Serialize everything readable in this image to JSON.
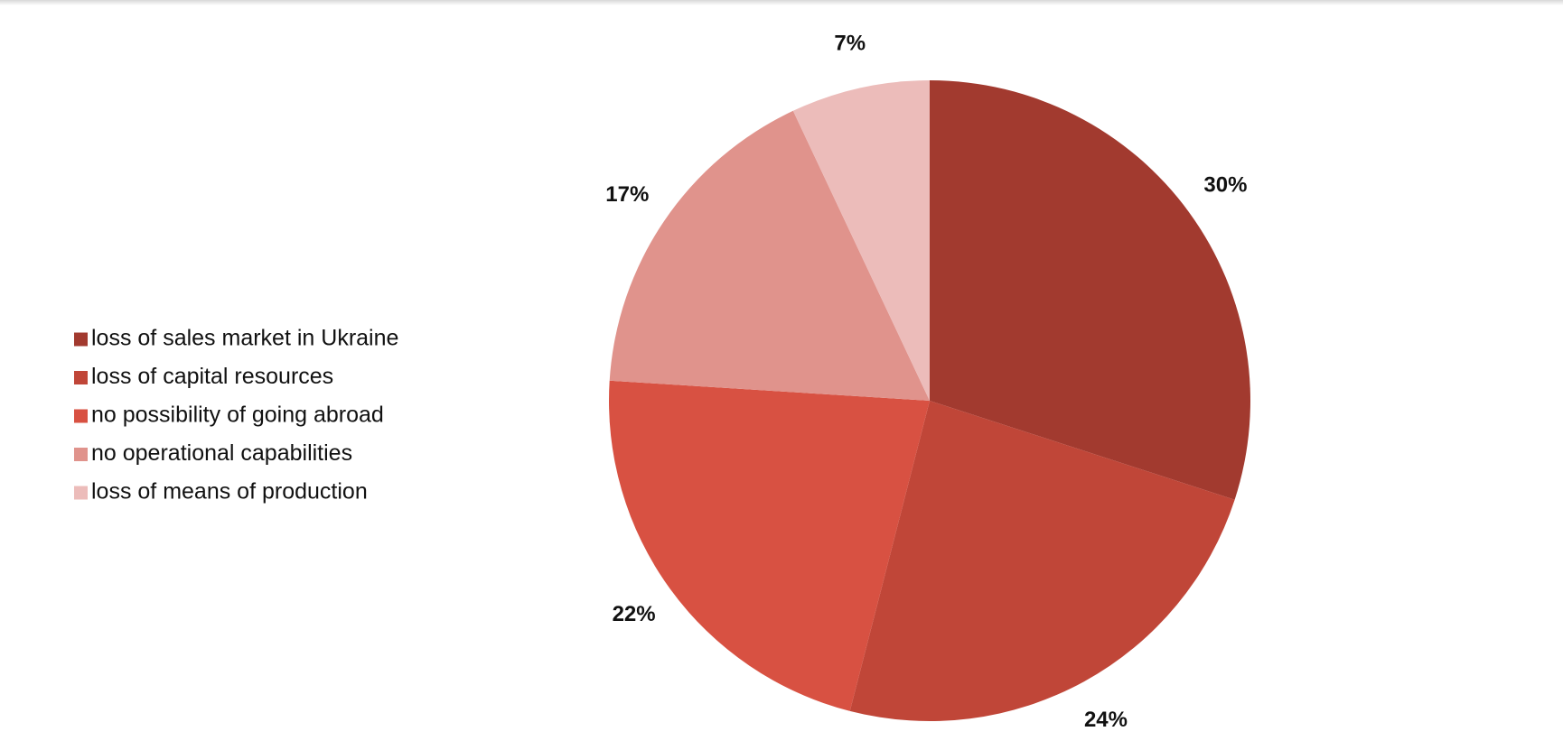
{
  "chart_data": {
    "type": "pie",
    "categories": [
      "loss of sales market in Ukraine",
      "loss of capital resources",
      "no possibility of going abroad",
      "no operational capabilities",
      "loss of means of production"
    ],
    "values": [
      30,
      24,
      22,
      17,
      7
    ],
    "value_labels": [
      "30%",
      "24%",
      "22%",
      "17%",
      "7%"
    ],
    "colors": [
      "#a23a2f",
      "#c04638",
      "#d85142",
      "#e0938c",
      "#ecbcba"
    ],
    "legend": "left"
  }
}
